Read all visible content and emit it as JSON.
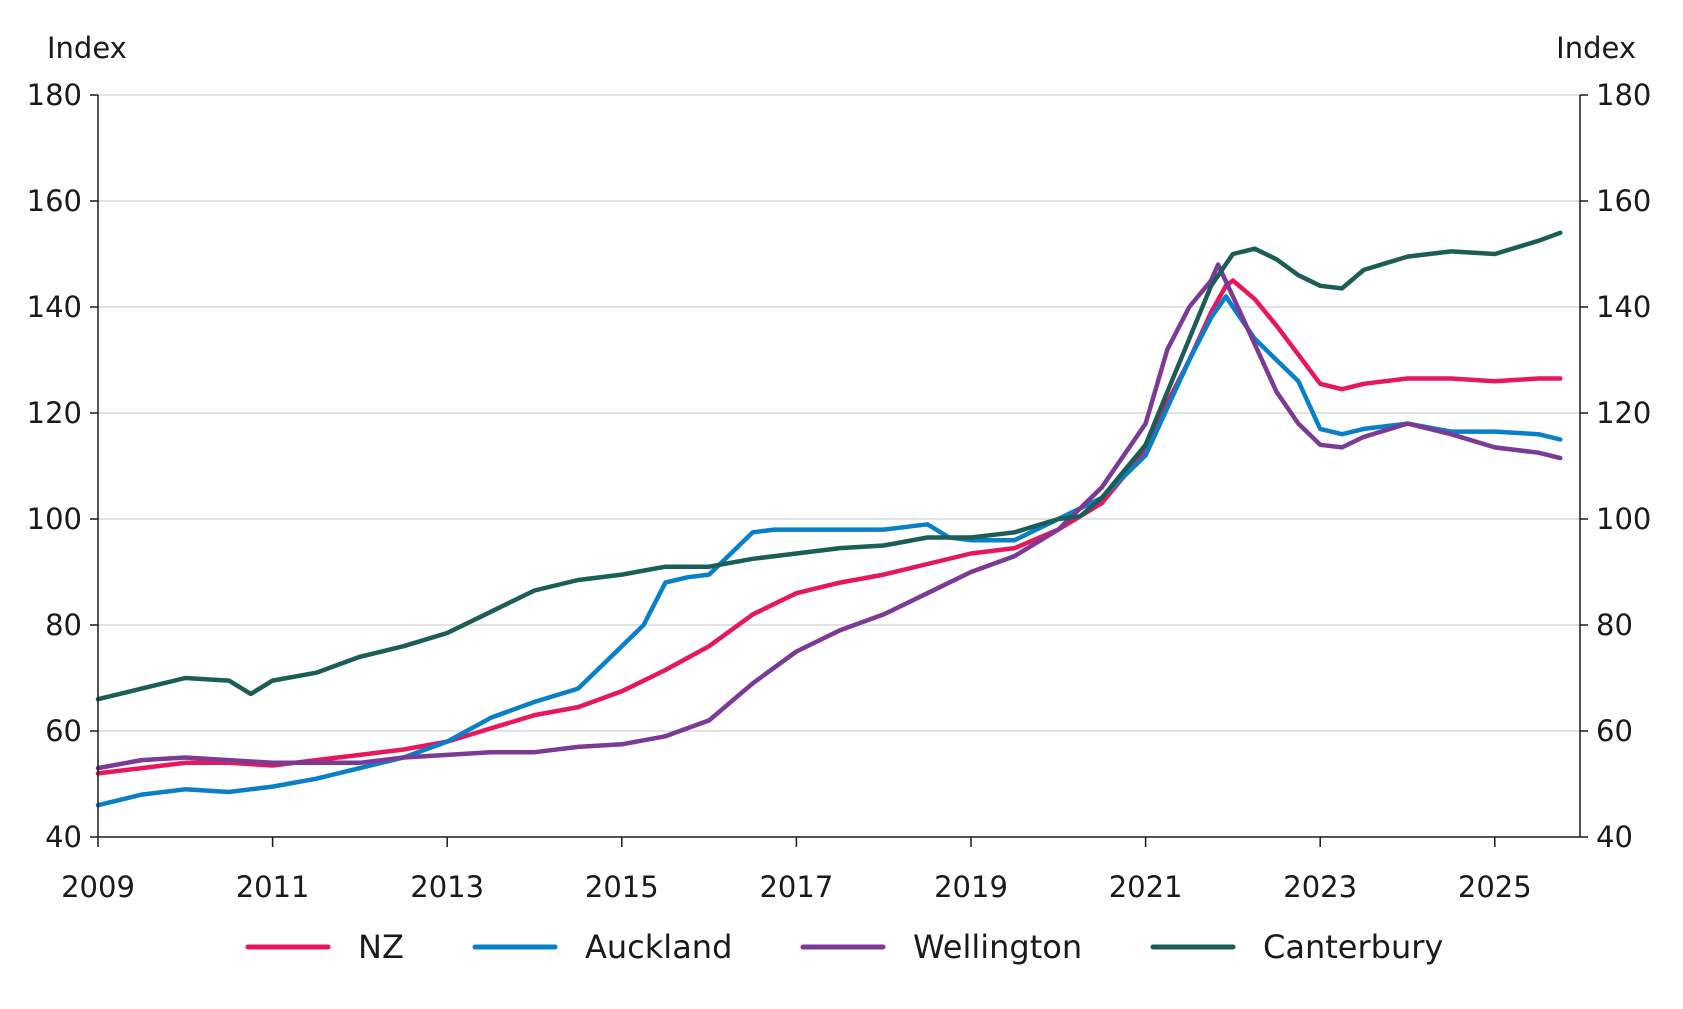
{
  "chart_data": {
    "type": "line",
    "y_label_left": "Index",
    "y_label_right": "Index",
    "ylim": [
      40,
      180
    ],
    "y_ticks": [
      "40",
      "60",
      "80",
      "100",
      "120",
      "140",
      "160",
      "180"
    ],
    "x_start": 2009.0,
    "x_end": 2025.75,
    "x_ticks": [
      "2009",
      "2011",
      "2013",
      "2015",
      "2017",
      "2019",
      "2021",
      "2023",
      "2025"
    ],
    "grid": "horizontal",
    "legend_position": "bottom",
    "series": [
      {
        "name": "NZ",
        "color": "#e8175d",
        "x": [
          2009.0,
          2009.5,
          2010.0,
          2010.5,
          2011.0,
          2011.5,
          2012.0,
          2012.5,
          2013.0,
          2013.5,
          2014.0,
          2014.5,
          2015.0,
          2015.5,
          2016.0,
          2016.5,
          2017.0,
          2017.5,
          2018.0,
          2018.5,
          2019.0,
          2019.5,
          2020.0,
          2020.5,
          2021.0,
          2021.25,
          2021.5,
          2021.75,
          2021.92,
          2022.0,
          2022.25,
          2022.5,
          2022.75,
          2023.0,
          2023.25,
          2023.5,
          2024.0,
          2024.5,
          2025.0,
          2025.5,
          2025.75
        ],
        "values": [
          52,
          53,
          54,
          54,
          53.5,
          54.5,
          55.5,
          56.5,
          58,
          60.5,
          63,
          64.5,
          67.5,
          71.5,
          76,
          82,
          86,
          88,
          89.5,
          91.5,
          93.5,
          94.5,
          98,
          103,
          113,
          122,
          130,
          139,
          144,
          145,
          141.5,
          136.5,
          131,
          125.5,
          124.5,
          125.5,
          126.5,
          126.5,
          126,
          126.5,
          126.5
        ]
      },
      {
        "name": "Auckland",
        "color": "#0a7fc9",
        "x": [
          2009.0,
          2009.5,
          2010.0,
          2010.5,
          2011.0,
          2011.5,
          2012.0,
          2012.5,
          2013.0,
          2013.5,
          2014.0,
          2014.5,
          2015.0,
          2015.25,
          2015.5,
          2015.75,
          2016.0,
          2016.25,
          2016.5,
          2016.75,
          2017.0,
          2017.5,
          2018.0,
          2018.5,
          2018.75,
          2019.0,
          2019.5,
          2020.0,
          2020.5,
          2021.0,
          2021.25,
          2021.5,
          2021.75,
          2021.92,
          2022.0,
          2022.25,
          2022.5,
          2022.75,
          2023.0,
          2023.25,
          2023.5,
          2024.0,
          2024.5,
          2025.0,
          2025.5,
          2025.75
        ],
        "values": [
          46,
          48,
          49,
          48.5,
          49.5,
          51,
          53,
          55,
          58,
          62.5,
          65.5,
          68,
          76,
          80,
          88,
          89,
          89.5,
          93.5,
          97.5,
          98,
          98,
          98,
          98,
          99,
          96.5,
          96,
          96,
          100,
          104,
          112,
          121,
          130,
          138,
          142,
          140,
          134,
          130,
          126,
          117,
          116,
          117,
          118,
          116.5,
          116.5,
          116,
          115
        ]
      },
      {
        "name": "Wellington",
        "color": "#7b3a96",
        "x": [
          2009.0,
          2009.5,
          2010.0,
          2010.5,
          2011.0,
          2011.5,
          2012.0,
          2012.5,
          2013.0,
          2013.5,
          2014.0,
          2014.5,
          2015.0,
          2015.5,
          2016.0,
          2016.5,
          2017.0,
          2017.5,
          2018.0,
          2018.5,
          2019.0,
          2019.5,
          2020.0,
          2020.5,
          2021.0,
          2021.25,
          2021.5,
          2021.75,
          2021.83,
          2022.0,
          2022.25,
          2022.5,
          2022.75,
          2023.0,
          2023.25,
          2023.5,
          2024.0,
          2024.5,
          2025.0,
          2025.5,
          2025.75
        ],
        "values": [
          53,
          54.5,
          55,
          54.5,
          54,
          54,
          54,
          55,
          55.5,
          56,
          56,
          57,
          57.5,
          59,
          62,
          69,
          75,
          79,
          82,
          86,
          90,
          93,
          98,
          106,
          118,
          132,
          140,
          145,
          148,
          142,
          133,
          124,
          118,
          114,
          113.5,
          115.5,
          118,
          116,
          113.5,
          112.5,
          111.5
        ]
      },
      {
        "name": "Canterbury",
        "color": "#1a5e57",
        "x": [
          2009.0,
          2009.5,
          2010.0,
          2010.5,
          2010.75,
          2011.0,
          2011.5,
          2012.0,
          2012.5,
          2013.0,
          2013.5,
          2014.0,
          2014.5,
          2015.0,
          2015.5,
          2016.0,
          2016.5,
          2017.0,
          2017.5,
          2018.0,
          2018.5,
          2019.0,
          2019.5,
          2020.0,
          2020.25,
          2020.5,
          2021.0,
          2021.25,
          2021.5,
          2021.75,
          2022.0,
          2022.25,
          2022.5,
          2022.75,
          2023.0,
          2023.25,
          2023.5,
          2024.0,
          2024.5,
          2025.0,
          2025.5,
          2025.75
        ],
        "values": [
          66,
          68,
          70,
          69.5,
          67,
          69.5,
          71,
          74,
          76,
          78.5,
          82.5,
          86.5,
          88.5,
          89.5,
          91,
          91,
          92.5,
          93.5,
          94.5,
          95,
          96.5,
          96.5,
          97.5,
          100,
          100.5,
          104,
          114,
          124,
          134,
          144,
          150,
          151,
          149,
          146,
          144,
          143.5,
          147,
          149.5,
          150.5,
          150,
          152.5,
          154
        ]
      }
    ]
  }
}
